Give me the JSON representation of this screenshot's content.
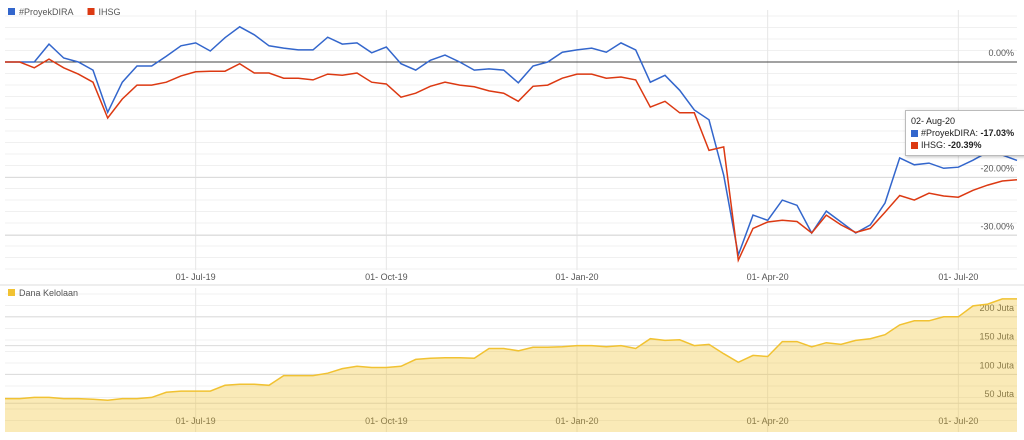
{
  "chart_data": [
    {
      "type": "line",
      "xlim": [
        0,
        69
      ],
      "xticks": [
        {
          "value": 13,
          "label": "01- Jul-19"
        },
        {
          "value": 26,
          "label": "01- Oct-19"
        },
        {
          "value": 39,
          "label": "01- Jan-20"
        },
        {
          "value": 52,
          "label": "01- Apr-20"
        },
        {
          "value": 65,
          "label": "01- Jul-20"
        }
      ],
      "ylim": [
        -36,
        9
      ],
      "yticks": [
        {
          "value": 0,
          "label": "0.00%"
        },
        {
          "value": -20,
          "label": "-20.00%"
        },
        {
          "value": -30,
          "label": "-30.00%"
        }
      ],
      "grid": true,
      "series": [
        {
          "name": "#ProyekDIRA",
          "color": "#3366cc",
          "values": [
            0,
            0,
            0,
            3.1,
            0.7,
            0,
            -1.4,
            -8.7,
            -3.5,
            -0.7,
            -0.7,
            1.0,
            2.8,
            3.3,
            1.9,
            4.2,
            6.1,
            4.7,
            2.8,
            2.4,
            2.1,
            2.1,
            4.3,
            3.1,
            3.3,
            1.6,
            2.6,
            -0.3,
            -1.4,
            0.3,
            1.2,
            0,
            -1.4,
            -1.2,
            -1.4,
            -3.6,
            -0.7,
            0,
            1.7,
            2.1,
            2.4,
            1.7,
            3.3,
            2.1,
            -3.5,
            -2.3,
            -4.9,
            -8.3,
            -10.0,
            -19.6,
            -33.4,
            -26.5,
            -27.4,
            -23.9,
            -24.8,
            -29.6,
            -25.8,
            -27.7,
            -29.6,
            -28.2,
            -24.4,
            -16.6,
            -17.8,
            -17.5,
            -18.4,
            -18.2,
            -17.0,
            -15.6,
            -16.1,
            -17.03
          ]
        },
        {
          "name": "IHSG",
          "color": "#dc3912",
          "values": [
            0,
            0,
            -1.0,
            0.5,
            -1.0,
            -2.1,
            -3.5,
            -9.7,
            -6.4,
            -4.0,
            -4.0,
            -3.5,
            -2.4,
            -1.7,
            -1.6,
            -1.6,
            -0.3,
            -1.9,
            -1.9,
            -2.8,
            -2.8,
            -3.1,
            -2.1,
            -2.3,
            -1.9,
            -3.5,
            -3.8,
            -6.1,
            -5.4,
            -4.2,
            -3.5,
            -4.0,
            -4.3,
            -5.0,
            -5.4,
            -6.8,
            -4.2,
            -4.0,
            -2.8,
            -2.1,
            -2.1,
            -2.8,
            -2.6,
            -3.1,
            -7.8,
            -6.8,
            -8.8,
            -8.8,
            -15.3,
            -14.7,
            -34.3,
            -28.8,
            -27.7,
            -27.4,
            -27.6,
            -29.6,
            -26.5,
            -28.2,
            -29.5,
            -28.8,
            -26.0,
            -23.1,
            -23.9,
            -22.7,
            -23.2,
            -23.4,
            -22.2,
            -21.3,
            -20.6,
            -20.39
          ]
        }
      ],
      "tooltip": {
        "title": "02- Aug-20",
        "rows": [
          {
            "label": "#ProyekDIRA:",
            "value": "-17.03%",
            "color": "#3366cc"
          },
          {
            "label": "IHSG:",
            "value": "-20.39%",
            "color": "#dc3912"
          }
        ]
      }
    },
    {
      "type": "area",
      "xlim": [
        0,
        69
      ],
      "xticks": [
        {
          "value": 13,
          "label": "01- Jul-19"
        },
        {
          "value": 26,
          "label": "01- Oct-19"
        },
        {
          "value": 39,
          "label": "01- Jan-20"
        },
        {
          "value": 52,
          "label": "01- Apr-20"
        },
        {
          "value": 65,
          "label": "01- Jul-20"
        }
      ],
      "ylim": [
        0,
        250
      ],
      "yticks": [
        {
          "value": 50,
          "label": "50 Juta"
        },
        {
          "value": 100,
          "label": "100 Juta"
        },
        {
          "value": 150,
          "label": "150 Juta"
        },
        {
          "value": 200,
          "label": "200 Juta"
        }
      ],
      "grid": true,
      "series": [
        {
          "name": "Dana Kelolaan",
          "color": "#f1c232",
          "values": [
            58,
            58,
            60,
            60,
            58,
            58,
            57,
            55,
            58,
            58,
            60,
            69,
            71,
            71,
            71,
            81,
            83,
            83,
            81,
            98,
            98,
            98,
            102,
            110,
            114,
            112,
            112,
            114,
            126,
            128,
            129,
            129,
            128,
            145,
            145,
            141,
            147,
            147,
            148,
            150,
            150,
            148,
            150,
            145,
            162,
            159,
            160,
            150,
            152,
            136,
            121,
            133,
            131,
            157,
            157,
            148,
            155,
            152,
            159,
            162,
            169,
            186,
            193,
            193,
            200,
            200,
            219,
            222,
            231,
            231
          ]
        }
      ]
    }
  ]
}
